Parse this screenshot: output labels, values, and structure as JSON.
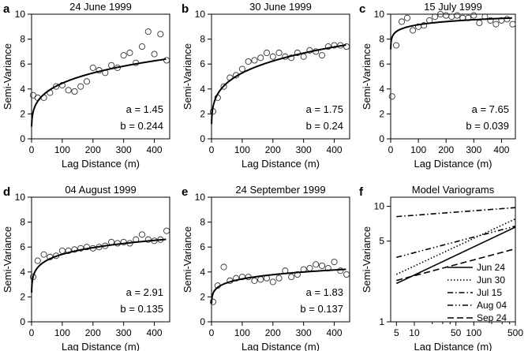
{
  "chart_data": [
    {
      "type": "scatter",
      "letter": "a",
      "title": "24 June 1999",
      "xlabel": "Lag  Distance (m)",
      "ylabel": "Semi-Variance",
      "xlim": [
        0,
        450
      ],
      "ylim": [
        0,
        10
      ],
      "xticks": [
        0,
        100,
        200,
        300,
        400
      ],
      "yticks": [
        0,
        2,
        4,
        6,
        8,
        10
      ],
      "points": {
        "x": [
          5,
          20,
          40,
          60,
          80,
          100,
          120,
          140,
          160,
          180,
          200,
          220,
          240,
          260,
          280,
          300,
          320,
          340,
          360,
          380,
          400,
          420,
          440
        ],
        "y": [
          3.5,
          3.3,
          3.3,
          3.7,
          4.2,
          4.3,
          3.9,
          3.8,
          4.2,
          4.6,
          5.7,
          5.5,
          5.3,
          5.9,
          5.7,
          6.7,
          6.9,
          6.1,
          7.4,
          8.6,
          6.8,
          8.4,
          6.3
        ]
      },
      "model": {
        "a": 1.45,
        "b": 0.244
      },
      "param_a": "a = 1.45",
      "param_b": "b = 0.244"
    },
    {
      "type": "scatter",
      "letter": "b",
      "title": "30 June 1999",
      "xlabel": "Lag  Distance (m)",
      "ylabel": "Semi-Variance",
      "xlim": [
        0,
        450
      ],
      "ylim": [
        0,
        10
      ],
      "xticks": [
        0,
        100,
        200,
        300,
        400
      ],
      "yticks": [
        0,
        2,
        4,
        6,
        8,
        10
      ],
      "points": {
        "x": [
          5,
          20,
          40,
          60,
          80,
          100,
          120,
          140,
          160,
          180,
          200,
          220,
          240,
          260,
          280,
          300,
          320,
          340,
          360,
          380,
          400,
          420,
          440
        ],
        "y": [
          2.2,
          3.3,
          4.2,
          4.9,
          5.1,
          5.6,
          6.2,
          6.3,
          6.5,
          6.9,
          6.6,
          6.9,
          6.6,
          6.5,
          6.9,
          6.6,
          7.1,
          7.0,
          6.7,
          7.4,
          7.5,
          7.5,
          7.4
        ]
      },
      "model": {
        "a": 1.75,
        "b": 0.24
      },
      "param_a": "a = 1.75",
      "param_b": "b = 0.24"
    },
    {
      "type": "scatter",
      "letter": "c",
      "title": "15 July 1999",
      "xlabel": "Lag  Distance (m)",
      "ylabel": "Semi-Variance",
      "xlim": [
        0,
        450
      ],
      "ylim": [
        0,
        10
      ],
      "xticks": [
        0,
        100,
        200,
        300,
        400
      ],
      "yticks": [
        0,
        2,
        4,
        6,
        8,
        10
      ],
      "points": {
        "x": [
          5,
          20,
          40,
          60,
          80,
          100,
          120,
          140,
          160,
          180,
          200,
          220,
          240,
          260,
          280,
          300,
          320,
          340,
          360,
          380,
          400,
          420,
          440
        ],
        "y": [
          3.4,
          7.5,
          9.4,
          9.7,
          8.7,
          9.0,
          9.1,
          9.5,
          9.8,
          10.0,
          9.9,
          9.8,
          9.9,
          9.7,
          9.7,
          9.9,
          9.3,
          9.8,
          9.5,
          9.2,
          9.5,
          9.6,
          9.2
        ]
      },
      "model": {
        "a": 7.65,
        "b": 0.039
      },
      "param_a": "a = 7.65",
      "param_b": "b = 0.039"
    },
    {
      "type": "scatter",
      "letter": "d",
      "title": "04 August 1999",
      "xlabel": "Lag  Distance (m)",
      "ylabel": "Semi-Variance",
      "xlim": [
        0,
        450
      ],
      "ylim": [
        0,
        10
      ],
      "xticks": [
        0,
        100,
        200,
        300,
        400
      ],
      "yticks": [
        0,
        2,
        4,
        6,
        8,
        10
      ],
      "points": {
        "x": [
          5,
          20,
          40,
          60,
          80,
          100,
          120,
          140,
          160,
          180,
          200,
          220,
          240,
          260,
          280,
          300,
          320,
          340,
          360,
          380,
          400,
          420,
          440
        ],
        "y": [
          3.6,
          4.9,
          5.4,
          5.2,
          5.3,
          5.7,
          5.7,
          5.8,
          5.9,
          6.0,
          5.9,
          6.0,
          6.1,
          6.4,
          6.3,
          6.4,
          6.3,
          6.6,
          7.0,
          6.6,
          6.5,
          6.6,
          7.3
        ]
      },
      "model": {
        "a": 2.91,
        "b": 0.135
      },
      "param_a": "a = 2.91",
      "param_b": "b = 0.135"
    },
    {
      "type": "scatter",
      "letter": "e",
      "title": "24 September 1999",
      "xlabel": "Lag  Distance (m)",
      "ylabel": "Semi-Variance",
      "xlim": [
        0,
        450
      ],
      "ylim": [
        0,
        10
      ],
      "xticks": [
        0,
        100,
        200,
        300,
        400
      ],
      "yticks": [
        0,
        2,
        4,
        6,
        8,
        10
      ],
      "points": {
        "x": [
          5,
          20,
          40,
          60,
          80,
          100,
          120,
          140,
          160,
          180,
          200,
          220,
          240,
          260,
          280,
          300,
          320,
          340,
          360,
          380,
          400,
          420,
          440
        ],
        "y": [
          1.6,
          2.9,
          4.4,
          3.3,
          3.5,
          3.6,
          3.6,
          3.3,
          3.4,
          3.5,
          3.2,
          3.5,
          4.1,
          3.6,
          3.8,
          4.2,
          4.3,
          4.6,
          4.5,
          4.3,
          4.8,
          4.1,
          3.8
        ]
      },
      "model": {
        "a": 1.83,
        "b": 0.137
      },
      "param_a": "a = 1.83",
      "param_b": "b = 0.137"
    },
    {
      "type": "line",
      "letter": "f",
      "title": "Model Variograms",
      "xlabel": "Lag  Distance (m)",
      "ylabel": "Semi-Variance",
      "xscale": "log",
      "yscale": "log",
      "xlim": [
        4,
        500
      ],
      "ylim": [
        1,
        12
      ],
      "xticks": [
        5,
        10,
        50,
        100,
        500
      ],
      "xtick_labels": [
        "5",
        "10",
        "50",
        "100",
        "500"
      ],
      "yticks": [
        1,
        5,
        10
      ],
      "ytick_labels": [
        "1",
        "5",
        "10"
      ],
      "legend_position": "bottom-right",
      "series": [
        {
          "name": "Jun 24",
          "a": 1.45,
          "b": 0.244,
          "dash": "solid"
        },
        {
          "name": "Jun 30",
          "a": 1.75,
          "b": 0.24,
          "dash": "dotted"
        },
        {
          "name": "Jul 15",
          "a": 7.65,
          "b": 0.039,
          "dash": "dashdot"
        },
        {
          "name": "Aug 04",
          "a": 2.91,
          "b": 0.135,
          "dash": "dashdotdot"
        },
        {
          "name": "Sep 24",
          "a": 1.83,
          "b": 0.137,
          "dash": "dashed"
        }
      ]
    }
  ]
}
